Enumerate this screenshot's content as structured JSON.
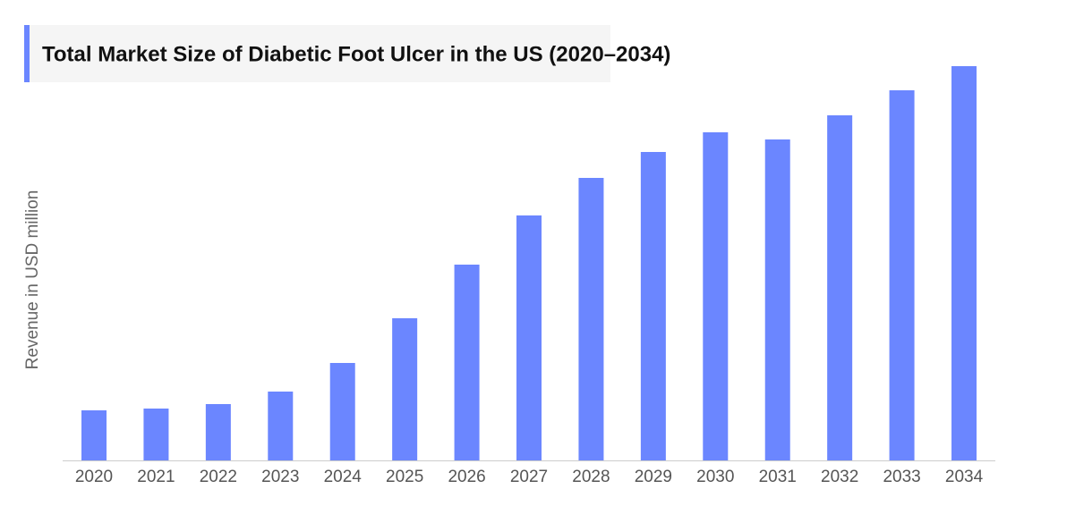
{
  "chart_data": {
    "type": "bar",
    "title": "Total Market Size of Diabetic Foot Ulcer in the US (2020–2034)",
    "y_label": "Revenue in USD million",
    "categories": [
      "2020",
      "2021",
      "2022",
      "2023",
      "2024",
      "2025",
      "2026",
      "2027",
      "2028",
      "2029",
      "2030",
      "2031",
      "2032",
      "2033",
      "2034"
    ],
    "values": [
      56,
      58,
      63,
      77,
      109,
      159,
      219,
      274,
      316,
      345,
      367,
      359,
      386,
      414,
      441
    ],
    "color": "#6b86ff",
    "ylim": [
      0,
      441
    ]
  }
}
